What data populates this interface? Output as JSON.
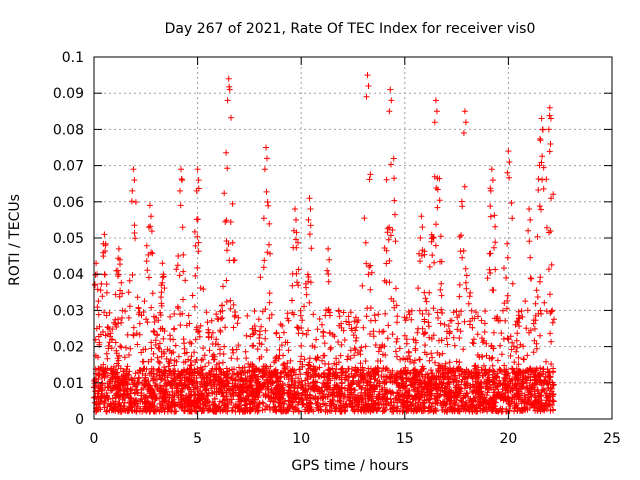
{
  "chart_data": {
    "type": "scatter",
    "title": "Day 267 of 2021, Rate Of TEC Index for receiver vis0",
    "xlabel": "GPS time / hours",
    "ylabel": "ROTI / TECUs",
    "xlim": [
      0,
      25
    ],
    "ylim": [
      0,
      0.1
    ],
    "x_ticks": [
      "0",
      "5",
      "10",
      "15",
      "20",
      "25"
    ],
    "y_ticks": [
      "0",
      "0.01",
      "0.02",
      "0.03",
      "0.04",
      "0.05",
      "0.06",
      "0.07",
      "0.08",
      "0.09",
      "0.1"
    ],
    "grid": true,
    "legend": "none",
    "marker": "+",
    "color": "#ff0000",
    "series": [
      {
        "x_range": [
          0,
          22.2
        ],
        "y_range": [
          0.002,
          0.095
        ],
        "baseline": 0.008,
        "peaks": [
          {
            "x": 0.1,
            "y": 0.043
          },
          {
            "x": 0.5,
            "y": 0.051
          },
          {
            "x": 1.2,
            "y": 0.047
          },
          {
            "x": 1.9,
            "y": 0.069
          },
          {
            "x": 2.7,
            "y": 0.059
          },
          {
            "x": 3.3,
            "y": 0.043
          },
          {
            "x": 4.2,
            "y": 0.069
          },
          {
            "x": 5.0,
            "y": 0.069
          },
          {
            "x": 6.5,
            "y": 0.094
          },
          {
            "x": 8.3,
            "y": 0.075
          },
          {
            "x": 9.7,
            "y": 0.058
          },
          {
            "x": 10.4,
            "y": 0.061
          },
          {
            "x": 11.3,
            "y": 0.047
          },
          {
            "x": 13.2,
            "y": 0.095
          },
          {
            "x": 14.3,
            "y": 0.091
          },
          {
            "x": 15.8,
            "y": 0.056
          },
          {
            "x": 16.5,
            "y": 0.088
          },
          {
            "x": 17.9,
            "y": 0.085
          },
          {
            "x": 19.2,
            "y": 0.069
          },
          {
            "x": 20.0,
            "y": 0.074
          },
          {
            "x": 21.0,
            "y": 0.058
          },
          {
            "x": 21.6,
            "y": 0.083
          },
          {
            "x": 22.0,
            "y": 0.086
          }
        ]
      }
    ]
  }
}
